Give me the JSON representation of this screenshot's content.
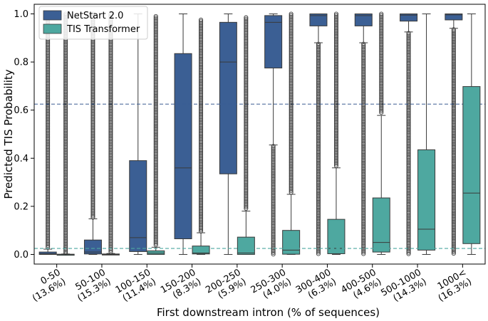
{
  "chart_data": {
    "type": "box",
    "xlabel": "First downstream intron (% of sequences)",
    "ylabel": "Predicted TIS Probability",
    "ylim": [
      -0.04,
      1.04
    ],
    "yticks": [
      "0.0",
      "0.2",
      "0.4",
      "0.6",
      "0.8",
      "1.0"
    ],
    "ytick_values": [
      0.0,
      0.2,
      0.4,
      0.6,
      0.8,
      1.0
    ],
    "categories": [
      {
        "line1": "0-50",
        "line2": "(13.6%)"
      },
      {
        "line1": "50-100",
        "line2": "(15.3%)"
      },
      {
        "line1": "100-150",
        "line2": "(11.4%)"
      },
      {
        "line1": "150-200",
        "line2": "(8.3%)"
      },
      {
        "line1": "200-250",
        "line2": "(5.9%)"
      },
      {
        "line1": "250-300",
        "line2": "(4.0%)"
      },
      {
        "line1": "300-400",
        "line2": "(6.3%)"
      },
      {
        "line1": "400-500",
        "line2": "(4.6%)"
      },
      {
        "line1": "500-1000",
        "line2": "(14.3%)"
      },
      {
        "line1": "1000<",
        "line2": "(16.3%)"
      }
    ],
    "series": [
      {
        "name": "NetStart 2.0",
        "color": "#3b5f94",
        "threshold": 0.625,
        "boxes": [
          {
            "q1": 0.0,
            "median": 0.003,
            "q3": 0.01,
            "whisker_low": 0.0,
            "whisker_high": 0.022,
            "outliers_from": 0.025,
            "outliers_to": 1.0
          },
          {
            "q1": 0.002,
            "median": 0.01,
            "q3": 0.06,
            "whisker_low": 0.0,
            "whisker_high": 0.148,
            "outliers_from": 0.15,
            "outliers_to": 1.0
          },
          {
            "q1": 0.012,
            "median": 0.07,
            "q3": 0.39,
            "whisker_low": 0.0,
            "whisker_high": 1.0,
            "outliers_from": null,
            "outliers_to": null
          },
          {
            "q1": 0.065,
            "median": 0.36,
            "q3": 0.835,
            "whisker_low": 0.0,
            "whisker_high": 1.0,
            "outliers_from": null,
            "outliers_to": null
          },
          {
            "q1": 0.335,
            "median": 0.8,
            "q3": 0.965,
            "whisker_low": 0.0,
            "whisker_high": 1.0,
            "outliers_from": null,
            "outliers_to": null
          },
          {
            "q1": 0.775,
            "median": 0.965,
            "q3": 0.993,
            "whisker_low": 0.455,
            "whisker_high": 1.0,
            "outliers_from": 0.0,
            "outliers_to": 0.45
          },
          {
            "q1": 0.95,
            "median": 0.993,
            "q3": 1.0,
            "whisker_low": 0.88,
            "whisker_high": 1.0,
            "outliers_from": 0.0,
            "outliers_to": 0.875
          },
          {
            "q1": 0.95,
            "median": 0.993,
            "q3": 1.0,
            "whisker_low": 0.88,
            "whisker_high": 1.0,
            "outliers_from": 0.0,
            "outliers_to": 0.875
          },
          {
            "q1": 0.97,
            "median": 0.995,
            "q3": 1.0,
            "whisker_low": 0.925,
            "whisker_high": 1.0,
            "outliers_from": 0.0,
            "outliers_to": 0.92
          },
          {
            "q1": 0.975,
            "median": 0.996,
            "q3": 1.0,
            "whisker_low": 0.94,
            "whisker_high": 1.0,
            "outliers_from": 0.0,
            "outliers_to": 0.935
          }
        ]
      },
      {
        "name": "TIS Transformer",
        "color": "#4ea8a0",
        "threshold": 0.025,
        "boxes": [
          {
            "q1": 0.0,
            "median": 0.0,
            "q3": 0.001,
            "whisker_low": 0.0,
            "whisker_high": 0.002,
            "outliers_from": 0.003,
            "outliers_to": 1.0
          },
          {
            "q1": 0.0,
            "median": 0.0,
            "q3": 0.002,
            "whisker_low": 0.0,
            "whisker_high": 0.004,
            "outliers_from": 0.005,
            "outliers_to": 1.0
          },
          {
            "q1": 0.0,
            "median": 0.005,
            "q3": 0.015,
            "whisker_low": 0.0,
            "whisker_high": 0.03,
            "outliers_from": 0.035,
            "outliers_to": 0.99
          },
          {
            "q1": 0.002,
            "median": 0.006,
            "q3": 0.035,
            "whisker_low": 0.0,
            "whisker_high": 0.09,
            "outliers_from": 0.095,
            "outliers_to": 0.975
          },
          {
            "q1": 0.0,
            "median": 0.006,
            "q3": 0.072,
            "whisker_low": 0.0,
            "whisker_high": 0.18,
            "outliers_from": 0.185,
            "outliers_to": 0.985
          },
          {
            "q1": 0.001,
            "median": 0.018,
            "q3": 0.1,
            "whisker_low": 0.0,
            "whisker_high": 0.25,
            "outliers_from": 0.255,
            "outliers_to": 1.0
          },
          {
            "q1": 0.003,
            "median": 0.025,
            "q3": 0.146,
            "whisker_low": 0.0,
            "whisker_high": 0.36,
            "outliers_from": 0.365,
            "outliers_to": 1.0
          },
          {
            "q1": 0.01,
            "median": 0.05,
            "q3": 0.235,
            "whisker_low": 0.0,
            "whisker_high": 0.578,
            "outliers_from": 0.585,
            "outliers_to": 1.0
          },
          {
            "q1": 0.018,
            "median": 0.105,
            "q3": 0.435,
            "whisker_low": 0.0,
            "whisker_high": 1.0,
            "outliers_from": null,
            "outliers_to": null
          },
          {
            "q1": 0.045,
            "median": 0.255,
            "q3": 0.698,
            "whisker_low": 0.0,
            "whisker_high": 1.0,
            "outliers_from": null,
            "outliers_to": null
          }
        ]
      }
    ],
    "legend": {
      "position": "top-left"
    }
  }
}
